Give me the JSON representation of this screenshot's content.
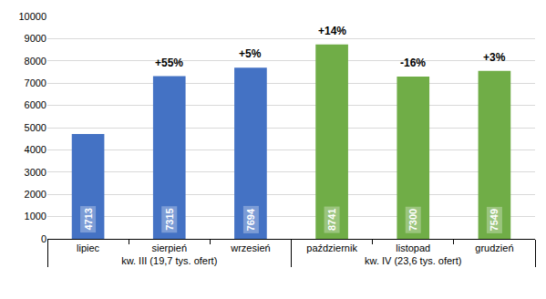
{
  "chart_data": {
    "type": "bar",
    "categories": [
      "lipiec",
      "sierpień",
      "wrzesień",
      "październik",
      "listopad",
      "grudzień"
    ],
    "groups": [
      "kw. III (19,7 tys. ofert)",
      "kw. III (19,7 tys. ofert)",
      "kw. III (19,7 tys. ofert)",
      "kw. IV (23,6 tys. ofert)",
      "kw. IV (23,6 tys. ofert)",
      "kw. IV (23,6 tys. ofert)"
    ],
    "values": [
      4713,
      7315,
      7694,
      8741,
      7300,
      7549
    ],
    "change_labels": [
      null,
      "+55%",
      "+5%",
      "+14%",
      "-16%",
      "+3%"
    ],
    "colors": [
      "#4472c4",
      "#4472c4",
      "#4472c4",
      "#70ad47",
      "#70ad47",
      "#70ad47"
    ],
    "ylim": [
      0,
      10000
    ],
    "yticks": [
      0,
      1000,
      2000,
      3000,
      4000,
      5000,
      6000,
      7000,
      8000,
      9000,
      10000
    ],
    "grid": true,
    "data_labels": true
  }
}
